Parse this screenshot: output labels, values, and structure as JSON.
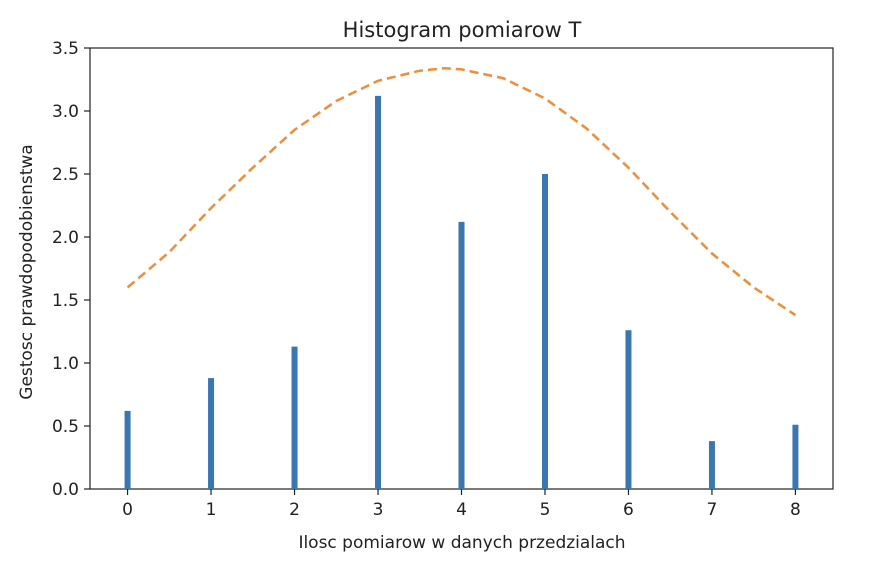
{
  "chart_data": {
    "type": "bar",
    "title": "Histogram pomiarow T",
    "xlabel": "Ilosc pomiarow w danych przedzialach",
    "ylabel": "Gestosc prawdopodobienstwa",
    "xlim": [
      -0.45,
      8.45
    ],
    "ylim": [
      0,
      3.5
    ],
    "xticks": [
      "0",
      "1",
      "2",
      "3",
      "4",
      "5",
      "6",
      "7",
      "8"
    ],
    "yticks": [
      "0.0",
      "0.5",
      "1.0",
      "1.5",
      "2.0",
      "2.5",
      "3.0",
      "3.5"
    ],
    "grid": false,
    "bars": {
      "x": [
        0,
        1,
        2,
        3,
        4,
        5,
        6,
        7,
        8
      ],
      "values": [
        0.62,
        0.88,
        1.13,
        3.12,
        2.12,
        2.5,
        1.26,
        0.38,
        0.51
      ],
      "color": "#3a76b0"
    },
    "curve": {
      "style": "dashed",
      "color": "#f08d3a",
      "x": [
        0,
        0.5,
        1,
        1.5,
        2,
        2.5,
        3,
        3.5,
        3.8,
        4,
        4.5,
        5,
        5.5,
        6,
        6.5,
        7,
        7.5,
        8
      ],
      "y": [
        1.6,
        1.88,
        2.23,
        2.55,
        2.85,
        3.08,
        3.24,
        3.32,
        3.34,
        3.33,
        3.26,
        3.1,
        2.86,
        2.55,
        2.2,
        1.87,
        1.6,
        1.38
      ]
    }
  }
}
